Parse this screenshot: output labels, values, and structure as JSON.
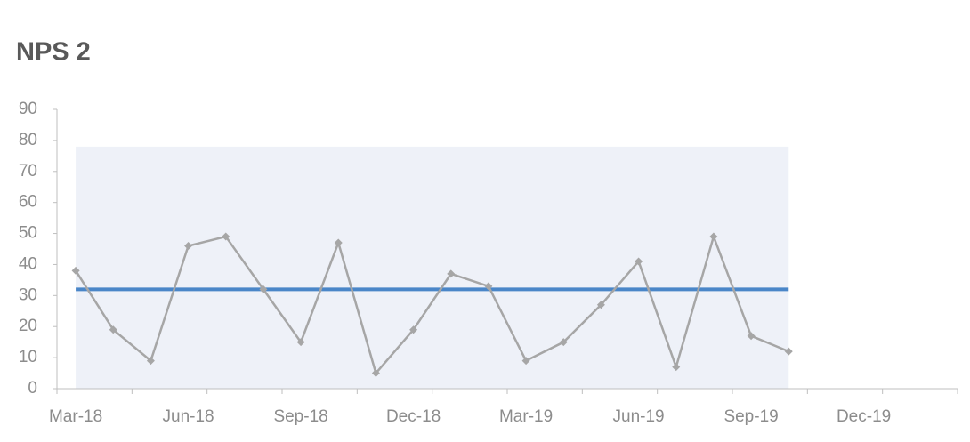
{
  "chart_data": {
    "type": "line",
    "title": "NPS 2",
    "categories": [
      "Mar-18",
      null,
      null,
      "Jun-18",
      null,
      null,
      "Sep-18",
      null,
      null,
      "Dec-18",
      null,
      null,
      "Mar-19",
      null,
      null,
      "Jun-19",
      null,
      null,
      "Sep-19",
      null,
      null,
      "Dec-19",
      null,
      null
    ],
    "series": [
      {
        "type": "area",
        "color": "#eef1f8",
        "values": [
          78,
          78,
          78,
          78,
          78,
          78,
          78,
          78,
          78,
          78,
          78,
          78,
          78,
          78,
          78,
          78,
          78,
          78,
          78,
          78,
          null,
          null,
          null,
          null
        ]
      },
      {
        "type": "line",
        "color": "#4a86c8",
        "values": [
          32,
          32,
          32,
          32,
          32,
          32,
          32,
          32,
          32,
          32,
          32,
          32,
          32,
          32,
          32,
          32,
          32,
          32,
          32,
          32,
          null,
          null,
          null,
          null
        ]
      },
      {
        "type": "line",
        "color": "#a6a6a6",
        "marker": "diamond",
        "values": [
          38,
          19,
          9,
          46,
          49,
          32,
          15,
          47,
          5,
          19,
          37,
          33,
          9,
          15,
          27,
          41,
          7,
          49,
          17,
          12,
          null,
          null,
          null,
          null
        ]
      }
    ],
    "ylim": [
      0,
      90
    ],
    "yticks": [
      0,
      10,
      20,
      30,
      40,
      50,
      60,
      70,
      80,
      90
    ],
    "grid": false
  }
}
